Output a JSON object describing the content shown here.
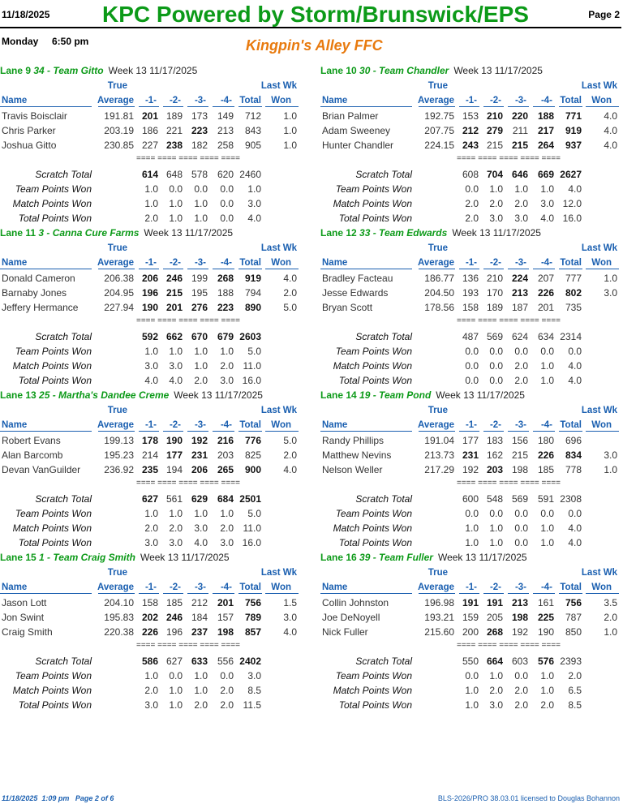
{
  "header": {
    "date": "11/18/2025",
    "title": "KPC Powered by Storm/Brunswick/EPS",
    "page": "Page 2",
    "session": "Monday     6:50 pm",
    "center_name": "Kingpin's Alley FFC"
  },
  "columns": {
    "name": "Name",
    "true": "True",
    "average": "Average",
    "g1": "-1-",
    "g2": "-2-",
    "g3": "-3-",
    "g4": "-4-",
    "total": "Total",
    "last_wk": "Last Wk",
    "won": "Won",
    "separator": "==== ==== ==== ==== ===="
  },
  "summary_labels": [
    "Scratch Total",
    "Team Points Won",
    "Match Points Won",
    "Total Points Won"
  ],
  "lanes": [
    {
      "lane": "Lane 9",
      "team": "34 - Team Gitto",
      "week": "Week 13  11/17/2025",
      "bowlers": [
        {
          "name": "Travis Boisclair",
          "avg": "191.81",
          "g": [
            "201",
            "189",
            "173",
            "149"
          ],
          "bold": [
            true,
            false,
            false,
            false
          ],
          "total": "712",
          "tb": false,
          "won": "1.0"
        },
        {
          "name": "Chris Parker",
          "avg": "203.19",
          "g": [
            "186",
            "221",
            "223",
            "213"
          ],
          "bold": [
            false,
            false,
            true,
            false
          ],
          "total": "843",
          "tb": false,
          "won": "1.0"
        },
        {
          "name": "Joshua Gitto",
          "avg": "230.85",
          "g": [
            "227",
            "238",
            "182",
            "258"
          ],
          "bold": [
            false,
            true,
            false,
            false
          ],
          "total": "905",
          "tb": false,
          "won": "1.0"
        }
      ],
      "summary": [
        {
          "v": [
            "614",
            "648",
            "578",
            "620",
            "2460"
          ],
          "b": [
            true,
            false,
            false,
            false,
            false
          ]
        },
        {
          "v": [
            "1.0",
            "0.0",
            "0.0",
            "0.0",
            "1.0"
          ],
          "b": [
            false,
            false,
            false,
            false,
            false
          ]
        },
        {
          "v": [
            "1.0",
            "1.0",
            "1.0",
            "0.0",
            "3.0"
          ],
          "b": [
            false,
            false,
            false,
            false,
            false
          ]
        },
        {
          "v": [
            "2.0",
            "1.0",
            "1.0",
            "0.0",
            "4.0"
          ],
          "b": [
            false,
            false,
            false,
            false,
            false
          ]
        }
      ]
    },
    {
      "lane": "Lane 10",
      "team": "30 - Team Chandler",
      "week": "Week 13  11/17/2025",
      "bowlers": [
        {
          "name": "Brian Palmer",
          "avg": "192.75",
          "g": [
            "153",
            "210",
            "220",
            "188"
          ],
          "bold": [
            false,
            true,
            true,
            true
          ],
          "total": "771",
          "tb": true,
          "won": "4.0"
        },
        {
          "name": "Adam Sweeney",
          "avg": "207.75",
          "g": [
            "212",
            "279",
            "211",
            "217"
          ],
          "bold": [
            true,
            true,
            false,
            true
          ],
          "total": "919",
          "tb": true,
          "won": "4.0"
        },
        {
          "name": "Hunter Chandler",
          "avg": "224.15",
          "g": [
            "243",
            "215",
            "215",
            "264"
          ],
          "bold": [
            true,
            false,
            true,
            true
          ],
          "total": "937",
          "tb": true,
          "won": "4.0"
        }
      ],
      "summary": [
        {
          "v": [
            "608",
            "704",
            "646",
            "669",
            "2627"
          ],
          "b": [
            false,
            true,
            true,
            true,
            true
          ]
        },
        {
          "v": [
            "0.0",
            "1.0",
            "1.0",
            "1.0",
            "4.0"
          ],
          "b": [
            false,
            false,
            false,
            false,
            false
          ]
        },
        {
          "v": [
            "2.0",
            "2.0",
            "2.0",
            "3.0",
            "12.0"
          ],
          "b": [
            false,
            false,
            false,
            false,
            false
          ]
        },
        {
          "v": [
            "2.0",
            "3.0",
            "3.0",
            "4.0",
            "16.0"
          ],
          "b": [
            false,
            false,
            false,
            false,
            false
          ]
        }
      ]
    },
    {
      "lane": "Lane 11",
      "team": "3 - Canna Cure Farms",
      "week": "Week 13  11/17/2025",
      "bowlers": [
        {
          "name": "Donald Cameron",
          "avg": "206.38",
          "g": [
            "206",
            "246",
            "199",
            "268"
          ],
          "bold": [
            true,
            true,
            false,
            true
          ],
          "total": "919",
          "tb": true,
          "won": "4.0"
        },
        {
          "name": "Barnaby Jones",
          "avg": "204.95",
          "g": [
            "196",
            "215",
            "195",
            "188"
          ],
          "bold": [
            true,
            true,
            false,
            false
          ],
          "total": "794",
          "tb": false,
          "won": "2.0"
        },
        {
          "name": "Jeffery Hermance",
          "avg": "227.94",
          "g": [
            "190",
            "201",
            "276",
            "223"
          ],
          "bold": [
            true,
            true,
            true,
            true
          ],
          "total": "890",
          "tb": true,
          "won": "5.0"
        }
      ],
      "summary": [
        {
          "v": [
            "592",
            "662",
            "670",
            "679",
            "2603"
          ],
          "b": [
            true,
            true,
            true,
            true,
            true
          ]
        },
        {
          "v": [
            "1.0",
            "1.0",
            "1.0",
            "1.0",
            "5.0"
          ],
          "b": [
            false,
            false,
            false,
            false,
            false
          ]
        },
        {
          "v": [
            "3.0",
            "3.0",
            "1.0",
            "2.0",
            "11.0"
          ],
          "b": [
            false,
            false,
            false,
            false,
            false
          ]
        },
        {
          "v": [
            "4.0",
            "4.0",
            "2.0",
            "3.0",
            "16.0"
          ],
          "b": [
            false,
            false,
            false,
            false,
            false
          ]
        }
      ]
    },
    {
      "lane": "Lane 12",
      "team": "33 - Team Edwards",
      "week": "Week 13  11/17/2025",
      "bowlers": [
        {
          "name": "Bradley Facteau",
          "avg": "186.77",
          "g": [
            "136",
            "210",
            "224",
            "207"
          ],
          "bold": [
            false,
            false,
            true,
            false
          ],
          "total": "777",
          "tb": false,
          "won": "1.0"
        },
        {
          "name": "Jesse Edwards",
          "avg": "204.50",
          "g": [
            "193",
            "170",
            "213",
            "226"
          ],
          "bold": [
            false,
            false,
            true,
            true
          ],
          "total": "802",
          "tb": true,
          "won": "3.0"
        },
        {
          "name": "Bryan Scott",
          "avg": "178.56",
          "g": [
            "158",
            "189",
            "187",
            "201"
          ],
          "bold": [
            false,
            false,
            false,
            false
          ],
          "total": "735",
          "tb": false,
          "won": ""
        }
      ],
      "summary": [
        {
          "v": [
            "487",
            "569",
            "624",
            "634",
            "2314"
          ],
          "b": [
            false,
            false,
            false,
            false,
            false
          ]
        },
        {
          "v": [
            "0.0",
            "0.0",
            "0.0",
            "0.0",
            "0.0"
          ],
          "b": [
            false,
            false,
            false,
            false,
            false
          ]
        },
        {
          "v": [
            "0.0",
            "0.0",
            "2.0",
            "1.0",
            "4.0"
          ],
          "b": [
            false,
            false,
            false,
            false,
            false
          ]
        },
        {
          "v": [
            "0.0",
            "0.0",
            "2.0",
            "1.0",
            "4.0"
          ],
          "b": [
            false,
            false,
            false,
            false,
            false
          ]
        }
      ]
    },
    {
      "lane": "Lane 13",
      "team": "25 - Martha's Dandee Creme",
      "week": "Week 13  11/17/2025",
      "bowlers": [
        {
          "name": "Robert Evans",
          "avg": "199.13",
          "g": [
            "178",
            "190",
            "192",
            "216"
          ],
          "bold": [
            true,
            true,
            true,
            true
          ],
          "total": "776",
          "tb": true,
          "won": "5.0"
        },
        {
          "name": "Alan Barcomb",
          "avg": "195.23",
          "g": [
            "214",
            "177",
            "231",
            "203"
          ],
          "bold": [
            false,
            true,
            true,
            false
          ],
          "total": "825",
          "tb": false,
          "won": "2.0"
        },
        {
          "name": "Devan VanGuilder",
          "avg": "236.92",
          "g": [
            "235",
            "194",
            "206",
            "265"
          ],
          "bold": [
            true,
            false,
            true,
            true
          ],
          "total": "900",
          "tb": true,
          "won": "4.0"
        }
      ],
      "summary": [
        {
          "v": [
            "627",
            "561",
            "629",
            "684",
            "2501"
          ],
          "b": [
            true,
            false,
            true,
            true,
            true
          ]
        },
        {
          "v": [
            "1.0",
            "1.0",
            "1.0",
            "1.0",
            "5.0"
          ],
          "b": [
            false,
            false,
            false,
            false,
            false
          ]
        },
        {
          "v": [
            "2.0",
            "2.0",
            "3.0",
            "2.0",
            "11.0"
          ],
          "b": [
            false,
            false,
            false,
            false,
            false
          ]
        },
        {
          "v": [
            "3.0",
            "3.0",
            "4.0",
            "3.0",
            "16.0"
          ],
          "b": [
            false,
            false,
            false,
            false,
            false
          ]
        }
      ]
    },
    {
      "lane": "Lane 14",
      "team": "19 - Team Pond",
      "week": "Week 13  11/17/2025",
      "bowlers": [
        {
          "name": "Randy Phillips",
          "avg": "191.04",
          "g": [
            "177",
            "183",
            "156",
            "180"
          ],
          "bold": [
            false,
            false,
            false,
            false
          ],
          "total": "696",
          "tb": false,
          "won": ""
        },
        {
          "name": "Matthew Nevins",
          "avg": "213.73",
          "g": [
            "231",
            "162",
            "215",
            "226"
          ],
          "bold": [
            true,
            false,
            false,
            true
          ],
          "total": "834",
          "tb": true,
          "won": "3.0"
        },
        {
          "name": "Nelson Weller",
          "avg": "217.29",
          "g": [
            "192",
            "203",
            "198",
            "185"
          ],
          "bold": [
            false,
            true,
            false,
            false
          ],
          "total": "778",
          "tb": false,
          "won": "1.0"
        }
      ],
      "summary": [
        {
          "v": [
            "600",
            "548",
            "569",
            "591",
            "2308"
          ],
          "b": [
            false,
            false,
            false,
            false,
            false
          ]
        },
        {
          "v": [
            "0.0",
            "0.0",
            "0.0",
            "0.0",
            "0.0"
          ],
          "b": [
            false,
            false,
            false,
            false,
            false
          ]
        },
        {
          "v": [
            "1.0",
            "1.0",
            "0.0",
            "1.0",
            "4.0"
          ],
          "b": [
            false,
            false,
            false,
            false,
            false
          ]
        },
        {
          "v": [
            "1.0",
            "1.0",
            "0.0",
            "1.0",
            "4.0"
          ],
          "b": [
            false,
            false,
            false,
            false,
            false
          ]
        }
      ]
    },
    {
      "lane": "Lane 15",
      "team": "1 - Team Craig Smith",
      "week": "Week 13  11/17/2025",
      "bowlers": [
        {
          "name": "Jason Lott",
          "avg": "204.10",
          "g": [
            "158",
            "185",
            "212",
            "201"
          ],
          "bold": [
            false,
            false,
            false,
            true
          ],
          "total": "756",
          "tb": true,
          "won": "1.5"
        },
        {
          "name": "Jon Swint",
          "avg": "195.83",
          "g": [
            "202",
            "246",
            "184",
            "157"
          ],
          "bold": [
            true,
            true,
            false,
            false
          ],
          "total": "789",
          "tb": true,
          "won": "3.0"
        },
        {
          "name": "Craig Smith",
          "avg": "220.38",
          "g": [
            "226",
            "196",
            "237",
            "198"
          ],
          "bold": [
            true,
            false,
            true,
            true
          ],
          "total": "857",
          "tb": true,
          "won": "4.0"
        }
      ],
      "summary": [
        {
          "v": [
            "586",
            "627",
            "633",
            "556",
            "2402"
          ],
          "b": [
            true,
            false,
            true,
            false,
            true
          ]
        },
        {
          "v": [
            "1.0",
            "0.0",
            "1.0",
            "0.0",
            "3.0"
          ],
          "b": [
            false,
            false,
            false,
            false,
            false
          ]
        },
        {
          "v": [
            "2.0",
            "1.0",
            "1.0",
            "2.0",
            "8.5"
          ],
          "b": [
            false,
            false,
            false,
            false,
            false
          ]
        },
        {
          "v": [
            "3.0",
            "1.0",
            "2.0",
            "2.0",
            "11.5"
          ],
          "b": [
            false,
            false,
            false,
            false,
            false
          ]
        }
      ]
    },
    {
      "lane": "Lane 16",
      "team": "39 - Team Fuller",
      "week": "Week 13  11/17/2025",
      "bowlers": [
        {
          "name": "Collin Johnston",
          "avg": "196.98",
          "g": [
            "191",
            "191",
            "213",
            "161"
          ],
          "bold": [
            true,
            true,
            true,
            false
          ],
          "total": "756",
          "tb": true,
          "won": "3.5"
        },
        {
          "name": "Joe DeNoyell",
          "avg": "193.21",
          "g": [
            "159",
            "205",
            "198",
            "225"
          ],
          "bold": [
            false,
            false,
            true,
            true
          ],
          "total": "787",
          "tb": false,
          "won": "2.0"
        },
        {
          "name": "Nick Fuller",
          "avg": "215.60",
          "g": [
            "200",
            "268",
            "192",
            "190"
          ],
          "bold": [
            false,
            true,
            false,
            false
          ],
          "total": "850",
          "tb": false,
          "won": "1.0"
        }
      ],
      "summary": [
        {
          "v": [
            "550",
            "664",
            "603",
            "576",
            "2393"
          ],
          "b": [
            false,
            true,
            false,
            true,
            false
          ]
        },
        {
          "v": [
            "0.0",
            "1.0",
            "0.0",
            "1.0",
            "2.0"
          ],
          "b": [
            false,
            false,
            false,
            false,
            false
          ]
        },
        {
          "v": [
            "1.0",
            "2.0",
            "2.0",
            "1.0",
            "6.5"
          ],
          "b": [
            false,
            false,
            false,
            false,
            false
          ]
        },
        {
          "v": [
            "1.0",
            "3.0",
            "2.0",
            "2.0",
            "8.5"
          ],
          "b": [
            false,
            false,
            false,
            false,
            false
          ]
        }
      ]
    }
  ],
  "footer": {
    "left": "11/18/2025  1:09 pm   Page 2 of 6",
    "right": "BLS-2026/PRO 38.03.01 licensed to Douglas Bohannon"
  }
}
